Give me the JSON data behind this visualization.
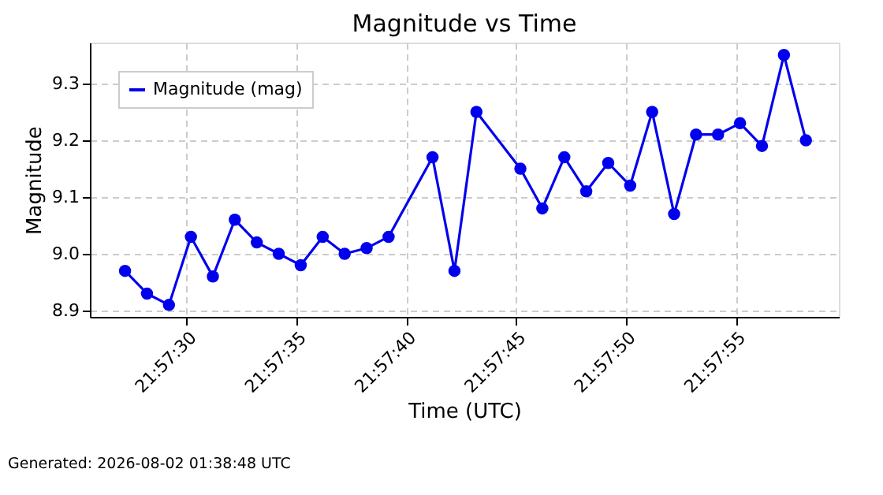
{
  "chart_data": {
    "type": "line",
    "title": "Magnitude vs Time",
    "xlabel": "Time (UTC)",
    "ylabel": "Magnitude",
    "x": [
      "2026-08-02T21:57:27.2",
      "2026-08-02T21:57:28.2",
      "2026-08-02T21:57:29.2",
      "2026-08-02T21:57:30.2",
      "2026-08-02T21:57:31.2",
      "2026-08-02T21:57:32.2",
      "2026-08-02T21:57:33.2",
      "2026-08-02T21:57:34.2",
      "2026-08-02T21:57:35.2",
      "2026-08-02T21:57:36.2",
      "2026-08-02T21:57:37.2",
      "2026-08-02T21:57:38.2",
      "2026-08-02T21:57:39.2",
      "2026-08-02T21:57:41.2",
      "2026-08-02T21:57:42.2",
      "2026-08-02T21:57:43.2",
      "2026-08-02T21:57:45.2",
      "2026-08-02T21:57:46.2",
      "2026-08-02T21:57:47.2",
      "2026-08-02T21:57:48.2",
      "2026-08-02T21:57:49.2",
      "2026-08-02T21:57:50.2",
      "2026-08-02T21:57:51.2",
      "2026-08-02T21:57:52.2",
      "2026-08-02T21:57:53.2",
      "2026-08-02T21:57:54.2",
      "2026-08-02T21:57:55.2",
      "2026-08-02T21:57:56.2",
      "2026-08-02T21:57:57.2",
      "2026-08-02T21:57:58.2"
    ],
    "series": [
      {
        "name": "Magnitude (mag)",
        "color": "#0000ee",
        "values": [
          8.97,
          8.93,
          8.91,
          9.03,
          8.96,
          9.06,
          9.02,
          9.0,
          8.98,
          9.03,
          9.0,
          9.01,
          9.03,
          9.17,
          8.97,
          9.25,
          9.15,
          9.08,
          9.17,
          9.11,
          9.16,
          9.12,
          9.25,
          9.07,
          9.21,
          9.21,
          9.23,
          9.19,
          9.35,
          9.2
        ]
      }
    ],
    "xlim": [
      "2026-08-02T21:57:25.6",
      "2026-08-02T21:57:59.7"
    ],
    "xticks": [
      {
        "value": "2026-08-02T21:57:30",
        "label": "21:57:30"
      },
      {
        "value": "2026-08-02T21:57:35",
        "label": "21:57:35"
      },
      {
        "value": "2026-08-02T21:57:40",
        "label": "21:57:40"
      },
      {
        "value": "2026-08-02T21:57:45",
        "label": "21:57:45"
      },
      {
        "value": "2026-08-02T21:57:50",
        "label": "21:57:50"
      },
      {
        "value": "2026-08-02T21:57:55",
        "label": "21:57:55"
      }
    ],
    "ylim": [
      8.889,
      9.372
    ],
    "yticks": [
      8.9,
      {
        "value": 9.0,
        "label": "9.0"
      },
      9.1,
      9.2,
      9.3
    ],
    "grid": true,
    "legend": "top left",
    "marker": "circle",
    "line_style": "solid",
    "annotations": [
      "Generated: 2026-08-02 01:38:48 UTC"
    ]
  }
}
